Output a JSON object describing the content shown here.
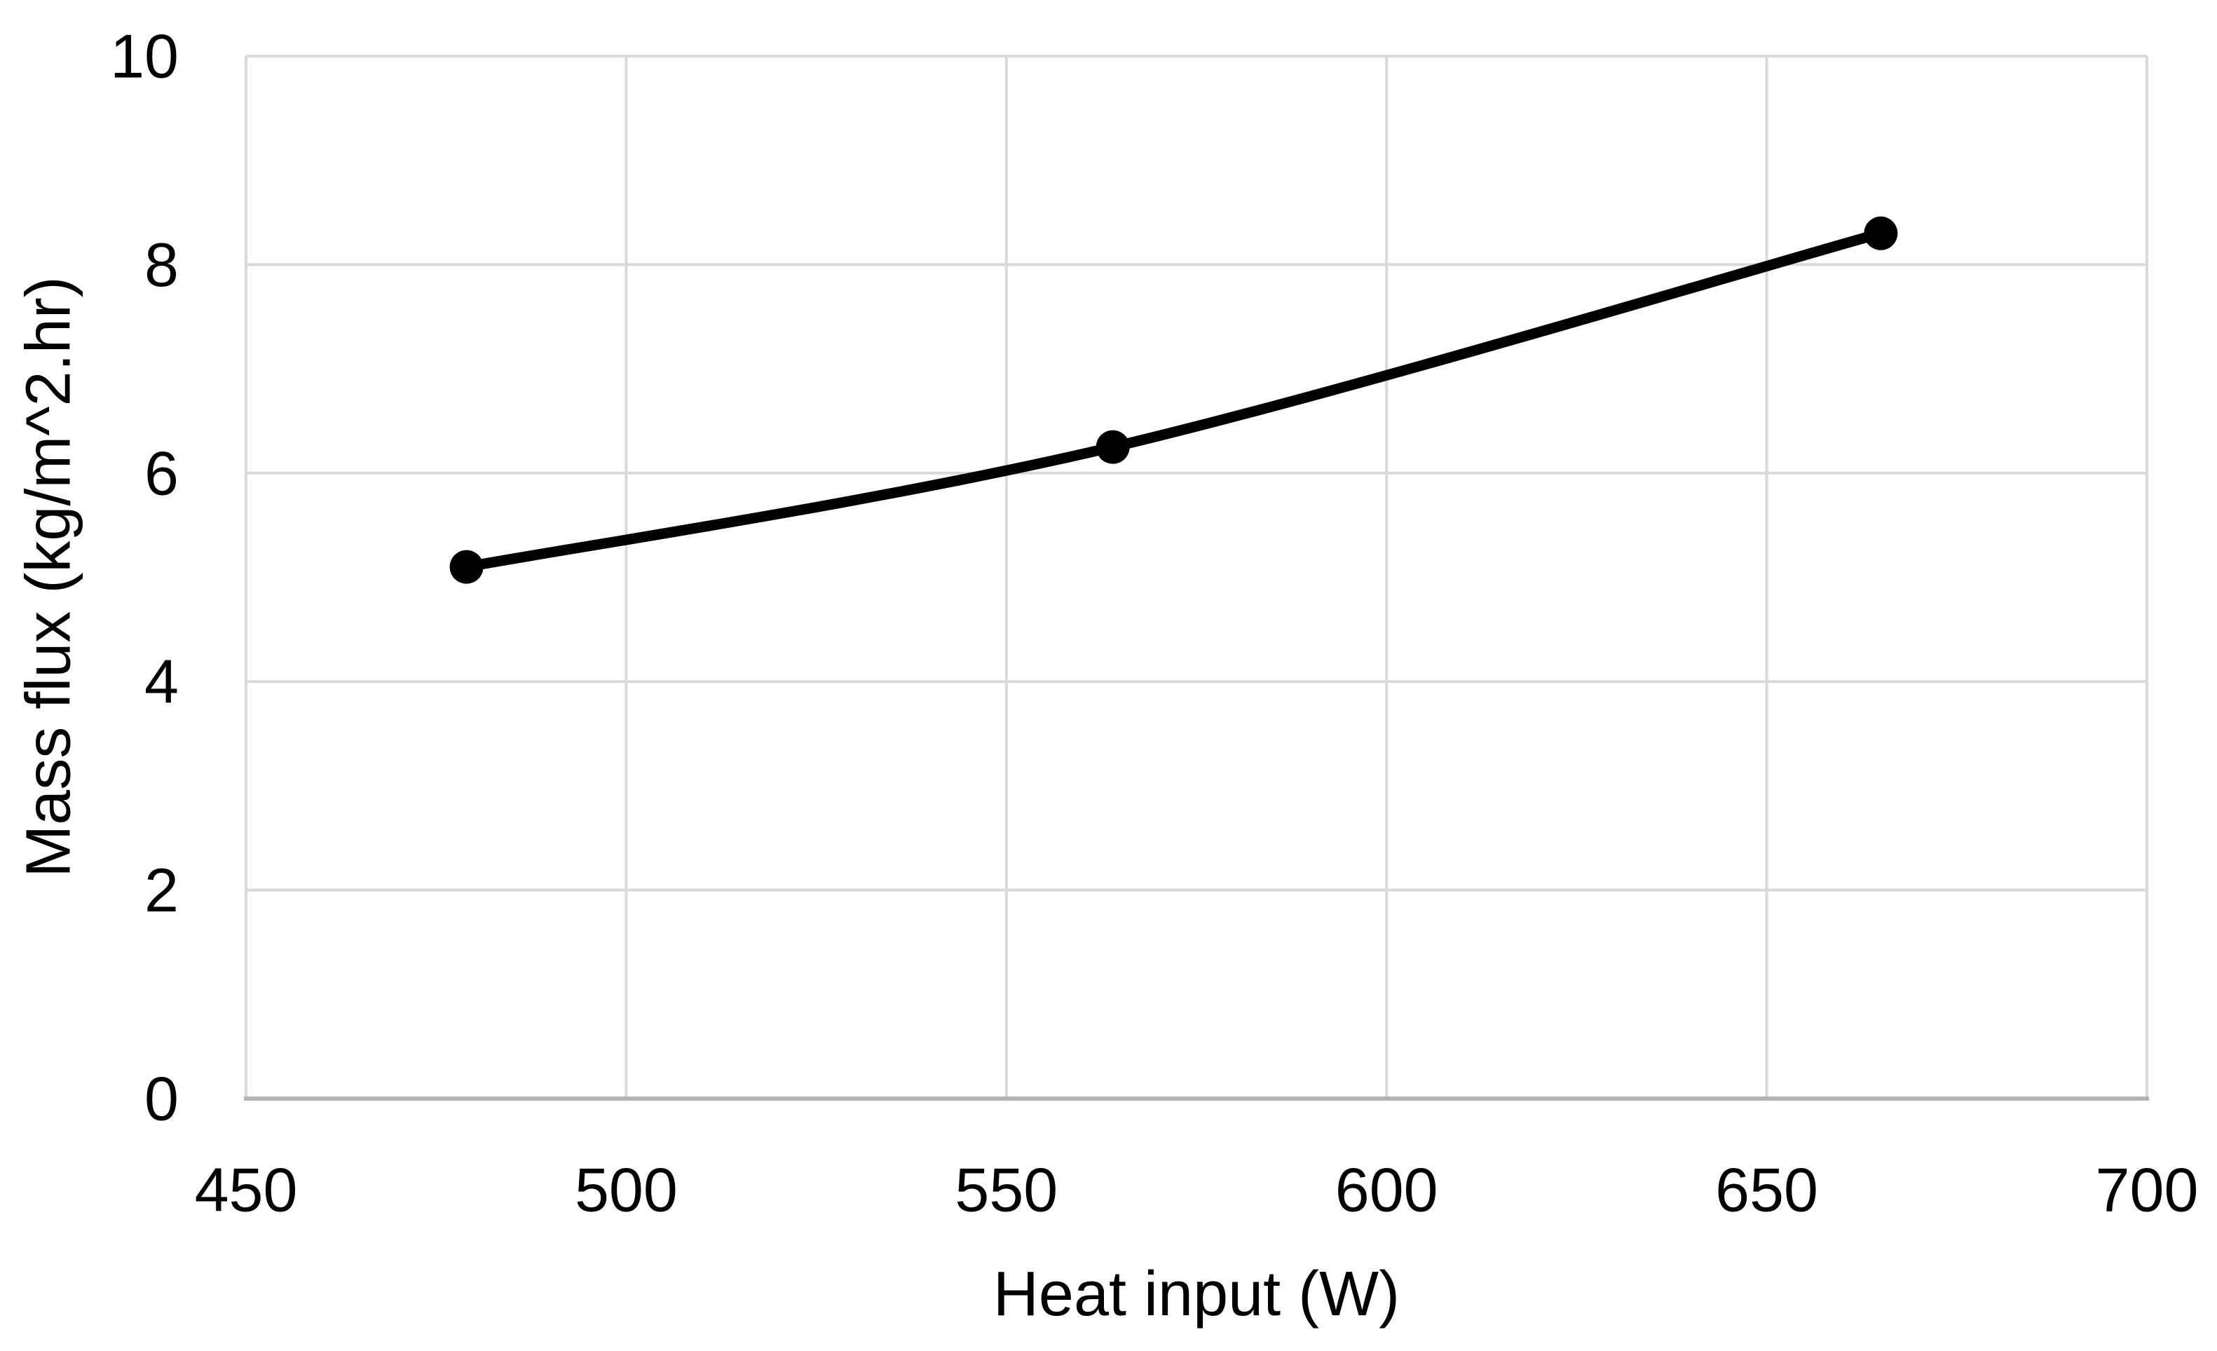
{
  "chart_data": {
    "type": "line",
    "title": "",
    "xlabel": "Heat input (W)",
    "ylabel": "Mass flux (kg/m^2.hr)",
    "x": [
      479,
      564,
      665
    ],
    "series": [
      {
        "name": "Mass flux",
        "values": [
          5.1,
          6.25,
          8.3
        ]
      }
    ],
    "xlim": [
      450,
      700
    ],
    "ylim": [
      0,
      10
    ],
    "x_ticks": [
      450,
      500,
      550,
      600,
      650,
      700
    ],
    "y_ticks": [
      0,
      2,
      4,
      6,
      8,
      10
    ],
    "grid": true,
    "legend": false,
    "smooth_line": true,
    "line_color": "#000000",
    "marker_color": "#000000",
    "gridline_color": "#D9D9D9",
    "axis_line_color": "#B3B3B3",
    "text_color": "#000000",
    "background_color": "#FFFFFF"
  }
}
